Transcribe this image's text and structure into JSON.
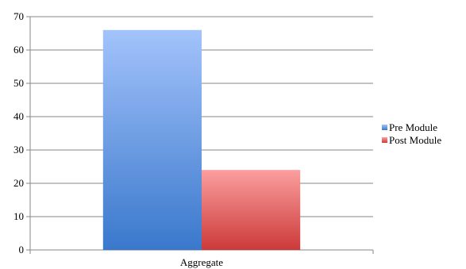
{
  "chart_data": {
    "type": "bar",
    "categories": [
      "Aggregate"
    ],
    "series": [
      {
        "name": "Pre Module",
        "values": [
          66
        ],
        "color": "#5b8fd6",
        "gradient": [
          "#a3c3fb",
          "#3a78cc"
        ]
      },
      {
        "name": "Post Module",
        "values": [
          24
        ],
        "color": "#e06666",
        "gradient": [
          "#fb9e9e",
          "#cc3a3a"
        ]
      }
    ],
    "ylim": [
      0,
      70
    ],
    "yticks": [
      0,
      10,
      20,
      30,
      40,
      50,
      60,
      70
    ],
    "grid": true,
    "legend": "right"
  }
}
